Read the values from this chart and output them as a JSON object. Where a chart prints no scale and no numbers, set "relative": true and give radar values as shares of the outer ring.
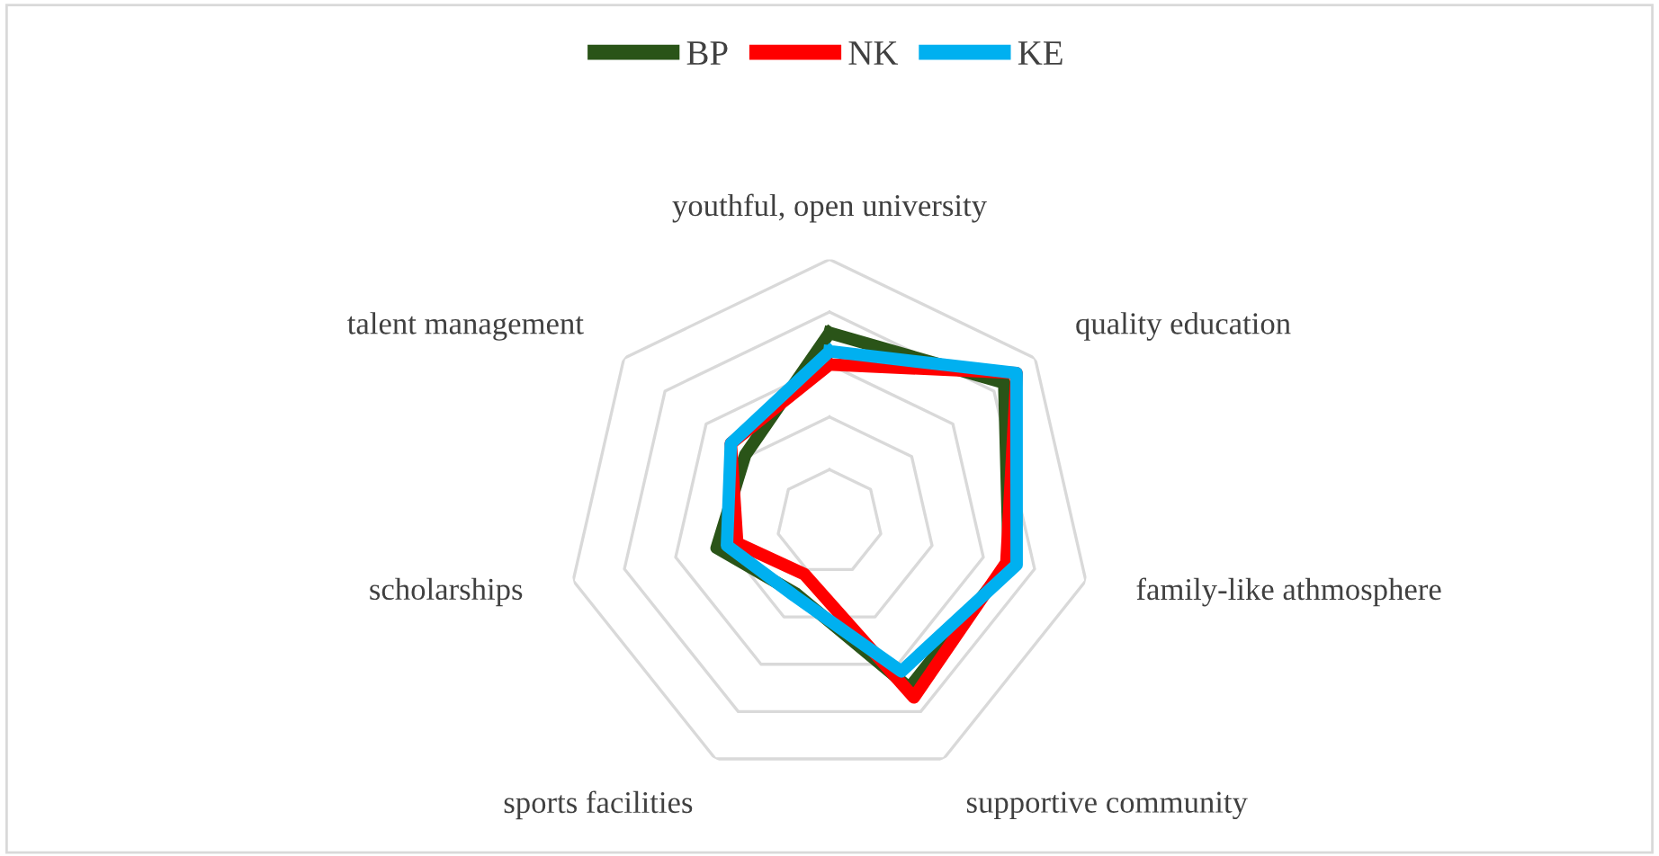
{
  "chart_data": {
    "type": "radar",
    "relative": true,
    "legend": "top",
    "grid": true,
    "categories": [
      "youthful, open university",
      "quality education",
      "family-like athmosphere",
      "supportive community",
      "sports facilities",
      "scholarships",
      "talent management"
    ],
    "series": [
      {
        "name": "BP",
        "color": "#2a5418",
        "values": [
          0.72,
          0.85,
          0.7,
          0.7,
          0.3,
          0.44,
          0.41
        ]
      },
      {
        "name": "NK",
        "color": "#ff0000",
        "values": [
          0.6,
          0.91,
          0.69,
          0.74,
          0.22,
          0.36,
          0.48
        ]
      },
      {
        "name": "KE",
        "color": "#00b0f0",
        "values": [
          0.65,
          0.91,
          0.73,
          0.63,
          0.31,
          0.4,
          0.48
        ]
      }
    ]
  }
}
